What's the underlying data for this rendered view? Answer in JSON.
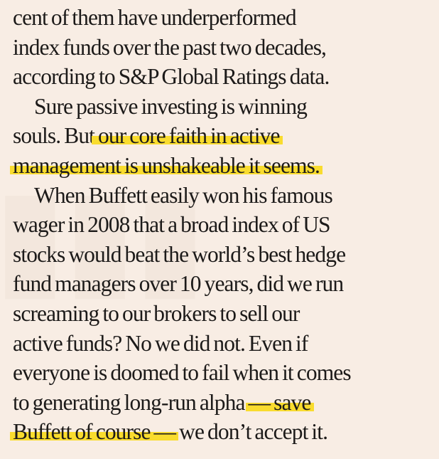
{
  "article": {
    "lines": [
      "cent of them have underperformed",
      "index funds over the past two decades,",
      "according to S&P Global Ratings data."
    ],
    "paragraph2": {
      "line1": "Sure passive investing is winning",
      "line2_plain": "souls. But",
      "line2_highlight": " our core faith in active",
      "line3_highlight": "management is unshakeable it seems."
    },
    "paragraph3": {
      "lines": [
        "When Buffett easily won his famous",
        "wager in 2008 that a broad index of US",
        "stocks would beat the world’s best hedge",
        "fund managers over 10 years, did we run",
        "screaming to our brokers to sell our",
        "active funds? No we did not. Even if",
        "everyone is doomed to fail when it comes"
      ],
      "line8_plain": "to generating long-run alpha ",
      "line8_highlight": "— save",
      "line9_highlight": "Buffett of course —",
      "line9_plain": " we don’t accept it."
    }
  },
  "colors": {
    "background": "#f8ede4",
    "text": "#1c1a19",
    "highlighter": "#f9dc2e"
  }
}
